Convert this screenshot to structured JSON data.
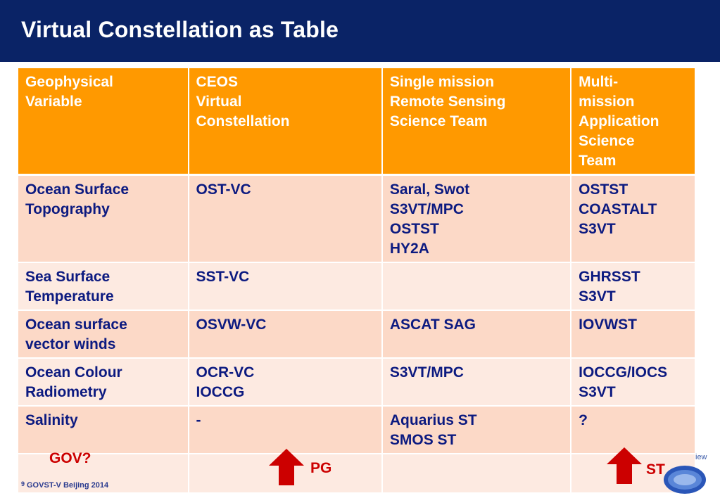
{
  "title": "Virtual Constellation as Table",
  "table": {
    "headers": [
      "Geophysical\nVariable",
      "CEOS\nVirtual\nConstellation",
      "Single mission\nRemote Sensing\nScience Team",
      "Multi-\nmission\nApplication\n Science\nTeam"
    ],
    "rows": [
      [
        "Ocean Surface\nTopography",
        "OST-VC",
        "Saral, Swot\nS3VT/MPC\nOSTST\nHY2A",
        "OSTST\nCOASTALT\nS3VT"
      ],
      [
        "Sea Surface\nTemperature",
        "SST-VC",
        "",
        "GHRSST\nS3VT"
      ],
      [
        "Ocean surface\nvector winds",
        "OSVW-VC",
        "ASCAT SAG",
        "IOVWST"
      ],
      [
        "Ocean Colour\nRadiometry",
        "OCR-VC\nIOCCG",
        "S3VT/MPC",
        "IOCCG/IOCS\nS3VT"
      ],
      [
        "Salinity",
        "-",
        "Aquarius ST\nSMOS  ST",
        "?"
      ],
      [
        "",
        "",
        "",
        ""
      ]
    ]
  },
  "annotations": {
    "gov": "GOV?",
    "pg": "PG",
    "st": "ST"
  },
  "footer": {
    "page_number": "9",
    "text": "GOVST-V  Beijing 2014",
    "logo_text": "iew"
  },
  "colors": {
    "title_bar": "#0a2366",
    "header_fill": "#ff9900",
    "row_dark": "#fcd9c7",
    "row_light": "#fdeae1",
    "body_text": "#0c1a80",
    "annotation_red": "#cc0000"
  }
}
